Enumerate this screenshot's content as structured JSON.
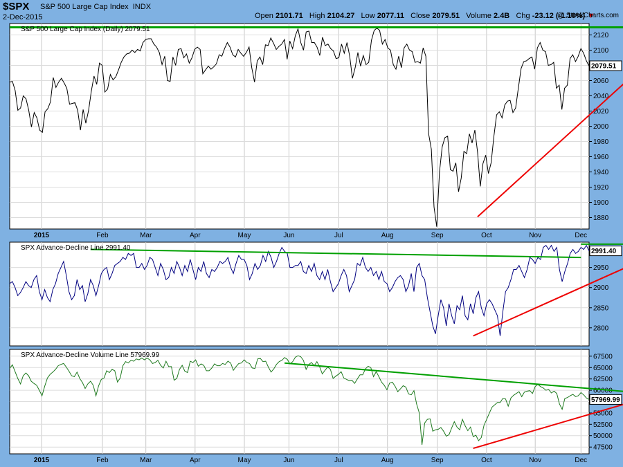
{
  "header": {
    "symbol": "$SPX",
    "name": "S&P 500 Large Cap Index",
    "exchange": "INDX",
    "date": "2-Dec-2015",
    "open_label": "Open",
    "open": "2101.71",
    "high_label": "High",
    "high": "2104.27",
    "low_label": "Low",
    "low": "2077.11",
    "close_label": "Close",
    "close": "2079.51",
    "volume_label": "Volume",
    "volume": "2.4B",
    "chg_label": "Chg",
    "chg": "-23.12 (-1.10%)",
    "chg_arrow": "▼",
    "brand": "@ StockCharts.com"
  },
  "colors": {
    "background": "#7fb1e2",
    "price_line": "#000000",
    "ad_line": "#000080",
    "advol_line": "#1f7a1f",
    "resistance": "#00a000",
    "support": "#ee0000"
  },
  "chart_data": [
    {
      "type": "line",
      "title": "S&P 500 Large Cap Index (Daily) 2079.51",
      "last_value": "2079.51",
      "months": [
        "2015",
        "Feb",
        "Mar",
        "Apr",
        "May",
        "Jun",
        "Jul",
        "Aug",
        "Sep",
        "Oct",
        "Nov",
        "Dec"
      ],
      "ylim": [
        1865,
        2135
      ],
      "yticks": [
        1880,
        1900,
        1920,
        1940,
        1960,
        1980,
        2000,
        2020,
        2040,
        2060,
        2080,
        2100,
        2120
      ],
      "series": [
        {
          "values": [
            2058,
            2059,
            2047,
            2021,
            2024,
            2040,
            2036,
            2021,
            1999,
            2018,
            2011,
            1995,
            1992,
            2019,
            2023,
            2032,
            2064,
            2051,
            2058,
            2063,
            2057,
            2050,
            2029,
            2030,
            2031,
            2021,
            1995,
            2022,
            2004,
            2021,
            2046,
            2066,
            2055,
            2083,
            2080,
            2045,
            2049,
            2068,
            2061,
            2065,
            2074,
            2084,
            2091,
            2095,
            2096,
            2100,
            2097,
            2101,
            2099,
            2110,
            2114,
            2115,
            2115,
            2108,
            2104,
            2097,
            2081,
            2092,
            2060,
            2059,
            2091,
            2080,
            2101,
            2102,
            2090,
            2095,
            2083,
            2090,
            2101,
            2104,
            2101,
            2069,
            2074,
            2079,
            2075,
            2078,
            2082,
            2094,
            2092,
            2102,
            2110,
            2104,
            2094,
            2091,
            2101,
            2096,
            2092,
            2097,
            2104,
            2077,
            2058,
            2086,
            2091,
            2081,
            2107,
            2106,
            2116,
            2109,
            2101,
            2105,
            2108,
            2114,
            2088,
            2112,
            2102,
            2119,
            2128,
            2110,
            2100,
            2124,
            2125,
            2110,
            2110,
            2104,
            2093,
            2117,
            2106,
            2108,
            2102,
            2099,
            2089,
            2090,
            2108,
            2096,
            2110,
            2092,
            2063,
            2077,
            2097,
            2079,
            2093,
            2081,
            2084,
            2113,
            2126,
            2129,
            2126,
            2108,
            2114,
            2103,
            2100,
            2081,
            2075,
            2092,
            2077,
            2103,
            2108,
            2100,
            2098,
            2084,
            2085,
            2083,
            2103,
            2092,
            1990,
            1970,
            1894,
            1868,
            1940,
            1973,
            1985,
            1987,
            1943,
            1941,
            1952,
            1914,
            1932,
            1967,
            1964,
            1990,
            1978,
            1995,
            1966,
            1921,
            1951,
            1962,
            1938,
            1952,
            1987,
            2015,
            2019,
            2011,
            2028,
            2033,
            2034,
            2018,
            2024,
            2050,
            2076,
            2085,
            2086,
            2089,
            2091,
            2075,
            2103,
            2110,
            2100,
            2098,
            2080,
            2081,
            2084,
            2050,
            2054,
            2022,
            2050,
            2054,
            2089,
            2094,
            2085,
            2092,
            2102,
            2096,
            2086,
            2079
          ]
        }
      ],
      "annotations": [
        {
          "type": "resistance",
          "color": "#00a000",
          "x_start": 0,
          "x_end": 233,
          "y_start": 2130,
          "y_end": 2130
        },
        {
          "type": "support",
          "color": "#ee0000",
          "x_start": 172,
          "x_end": 233,
          "y_start": 1881,
          "y_end": 2079.51
        }
      ]
    },
    {
      "type": "line",
      "title": "SPX Advance-Decline Line 2991.40",
      "last_value": "2991.40",
      "ylim": [
        2755,
        3013
      ],
      "yticks": [
        2800,
        2850,
        2900,
        2950
      ],
      "series": [
        {
          "values": [
            2910,
            2915,
            2900,
            2880,
            2888,
            2900,
            2915,
            2905,
            2900,
            2920,
            2930,
            2890,
            2870,
            2895,
            2875,
            2865,
            2895,
            2910,
            2935,
            2950,
            2965,
            2930,
            2890,
            2870,
            2880,
            2920,
            2895,
            2905,
            2865,
            2885,
            2920,
            2905,
            2880,
            2905,
            2935,
            2945,
            2950,
            2920,
            2935,
            2955,
            2960,
            2965,
            2975,
            2970,
            2985,
            2980,
            2985,
            2950,
            2950,
            2960,
            2945,
            2955,
            2975,
            2970,
            2950,
            2930,
            2960,
            2945,
            2920,
            2925,
            2950,
            2935,
            2965,
            2950,
            2930,
            2955,
            2940,
            2970,
            2945,
            2920,
            2950,
            2940,
            2965,
            2935,
            2925,
            2945,
            2940,
            2950,
            2965,
            2960,
            2965,
            2975,
            2950,
            2935,
            2960,
            2980,
            2970,
            2970,
            2955,
            2920,
            2935,
            2960,
            2945,
            2955,
            2980,
            2965,
            2990,
            2975,
            2950,
            2965,
            2985,
            3000,
            2990,
            2985,
            2950,
            2950,
            2955,
            2955,
            2965,
            2940,
            2935,
            2955,
            2940,
            2960,
            2930,
            2920,
            2940,
            2920,
            2945,
            2915,
            2890,
            2900,
            2910,
            2930,
            2945,
            2930,
            2890,
            2905,
            2920,
            2960,
            2955,
            2975,
            2950,
            2940,
            2950,
            2930,
            2940,
            2920,
            2940,
            2915,
            2910,
            2890,
            2900,
            2915,
            2925,
            2930,
            2920,
            2890,
            2905,
            2935,
            2890,
            2950,
            2960,
            2930,
            2920,
            2875,
            2840,
            2805,
            2785,
            2830,
            2870,
            2850,
            2805,
            2860,
            2830,
            2810,
            2855,
            2845,
            2880,
            2830,
            2820,
            2860,
            2835,
            2875,
            2890,
            2850,
            2830,
            2860,
            2870,
            2860,
            2845,
            2830,
            2780,
            2840,
            2890,
            2900,
            2920,
            2945,
            2945,
            2955,
            2940,
            2925,
            2945,
            2975,
            2970,
            2960,
            2975,
            2970,
            3000,
            3005,
            2995,
            3005,
            2990,
            3000,
            2945,
            2915,
            2940,
            2960,
            2985,
            2995,
            2985,
            2990,
            3000,
            2995,
            3005,
            2991
          ]
        }
      ],
      "annotations": [
        {
          "type": "resistance",
          "color": "#00a000",
          "x_start": 30,
          "x_end": 212,
          "y_start": 2995,
          "y_end": 2975
        },
        {
          "type": "resistance",
          "color": "#00a000",
          "x_start": 212,
          "x_end": 233,
          "y_start": 3008,
          "y_end": 3008
        },
        {
          "type": "support",
          "color": "#ee0000",
          "x_start": 172,
          "x_end": 233,
          "y_start": 2780,
          "y_end": 2963
        }
      ]
    },
    {
      "type": "line",
      "title": "SPX Advance-Decline Volume Line 57969.99",
      "last_value": "57969.99",
      "ylim": [
        46000,
        69000
      ],
      "yticks": [
        47500,
        50000,
        52500,
        55000,
        57500,
        60000,
        62500,
        65000,
        67500
      ],
      "series": [
        {
          "values": [
            64800,
            65600,
            64100,
            62600,
            61400,
            63200,
            63800,
            63200,
            62000,
            61500,
            61100,
            60000,
            58800,
            60900,
            62700,
            63500,
            64000,
            64600,
            65400,
            65700,
            65900,
            65100,
            64200,
            63200,
            63000,
            64000,
            62600,
            61700,
            60400,
            61400,
            62000,
            61100,
            58800,
            61000,
            62400,
            62700,
            64300,
            63900,
            64600,
            64300,
            61800,
            62700,
            65400,
            66300,
            66000,
            66600,
            66400,
            66900,
            66700,
            67100,
            66700,
            67100,
            66700,
            65900,
            66100,
            66600,
            65500,
            64900,
            66400,
            65200,
            65200,
            62200,
            62600,
            64600,
            65500,
            64200,
            63900,
            66400,
            66100,
            66700,
            65300,
            65800,
            65500,
            64300,
            64300,
            64900,
            65800,
            65400,
            65400,
            65900,
            65700,
            66400,
            66000,
            64400,
            65200,
            65900,
            66000,
            66700,
            66100,
            65900,
            64900,
            64800,
            66900,
            67000,
            66300,
            66400,
            65100,
            64000,
            64700,
            65700,
            66300,
            66600,
            67200,
            66800,
            65800,
            66300,
            67300,
            67600,
            67400,
            66600,
            64600,
            65700,
            66100,
            65400,
            66300,
            65200,
            63600,
            64400,
            65100,
            64600,
            62600,
            63100,
            63500,
            64100,
            62700,
            62400,
            62100,
            62200,
            61500,
            62500,
            63400,
            63400,
            64700,
            65300,
            65000,
            63000,
            64100,
            63000,
            61800,
            61100,
            60100,
            61600,
            61800,
            60900,
            59700,
            60300,
            61000,
            60700,
            59200,
            59000,
            59900,
            57000,
            55000,
            48000,
            52800,
            53600,
            53700,
            51000,
            51300,
            51400,
            51800,
            51000,
            49900,
            50200,
            51700,
            53100,
            51900,
            51300,
            53600,
            52200,
            51100,
            51900,
            49800,
            50100,
            48900,
            49600,
            52300,
            53600,
            55000,
            56300,
            56800,
            57300,
            57300,
            58200,
            58100,
            56500,
            58300,
            58900,
            59300,
            59700,
            58600,
            59600,
            59800,
            59900,
            59300,
            60800,
            61300,
            60800,
            60500,
            60000,
            60200,
            59400,
            59800,
            59300,
            57000,
            55800,
            58200,
            58400,
            58800,
            59100,
            58600,
            58800,
            59500,
            59000,
            58300,
            57970
          ]
        }
      ],
      "annotations": [
        {
          "type": "resistance",
          "color": "#00a000",
          "x_start": 102,
          "x_end": 233,
          "y_start": 66000,
          "y_end": 59500
        },
        {
          "type": "support",
          "color": "#ee0000",
          "x_start": 172,
          "x_end": 233,
          "y_start": 47200,
          "y_end": 57800
        }
      ]
    }
  ]
}
